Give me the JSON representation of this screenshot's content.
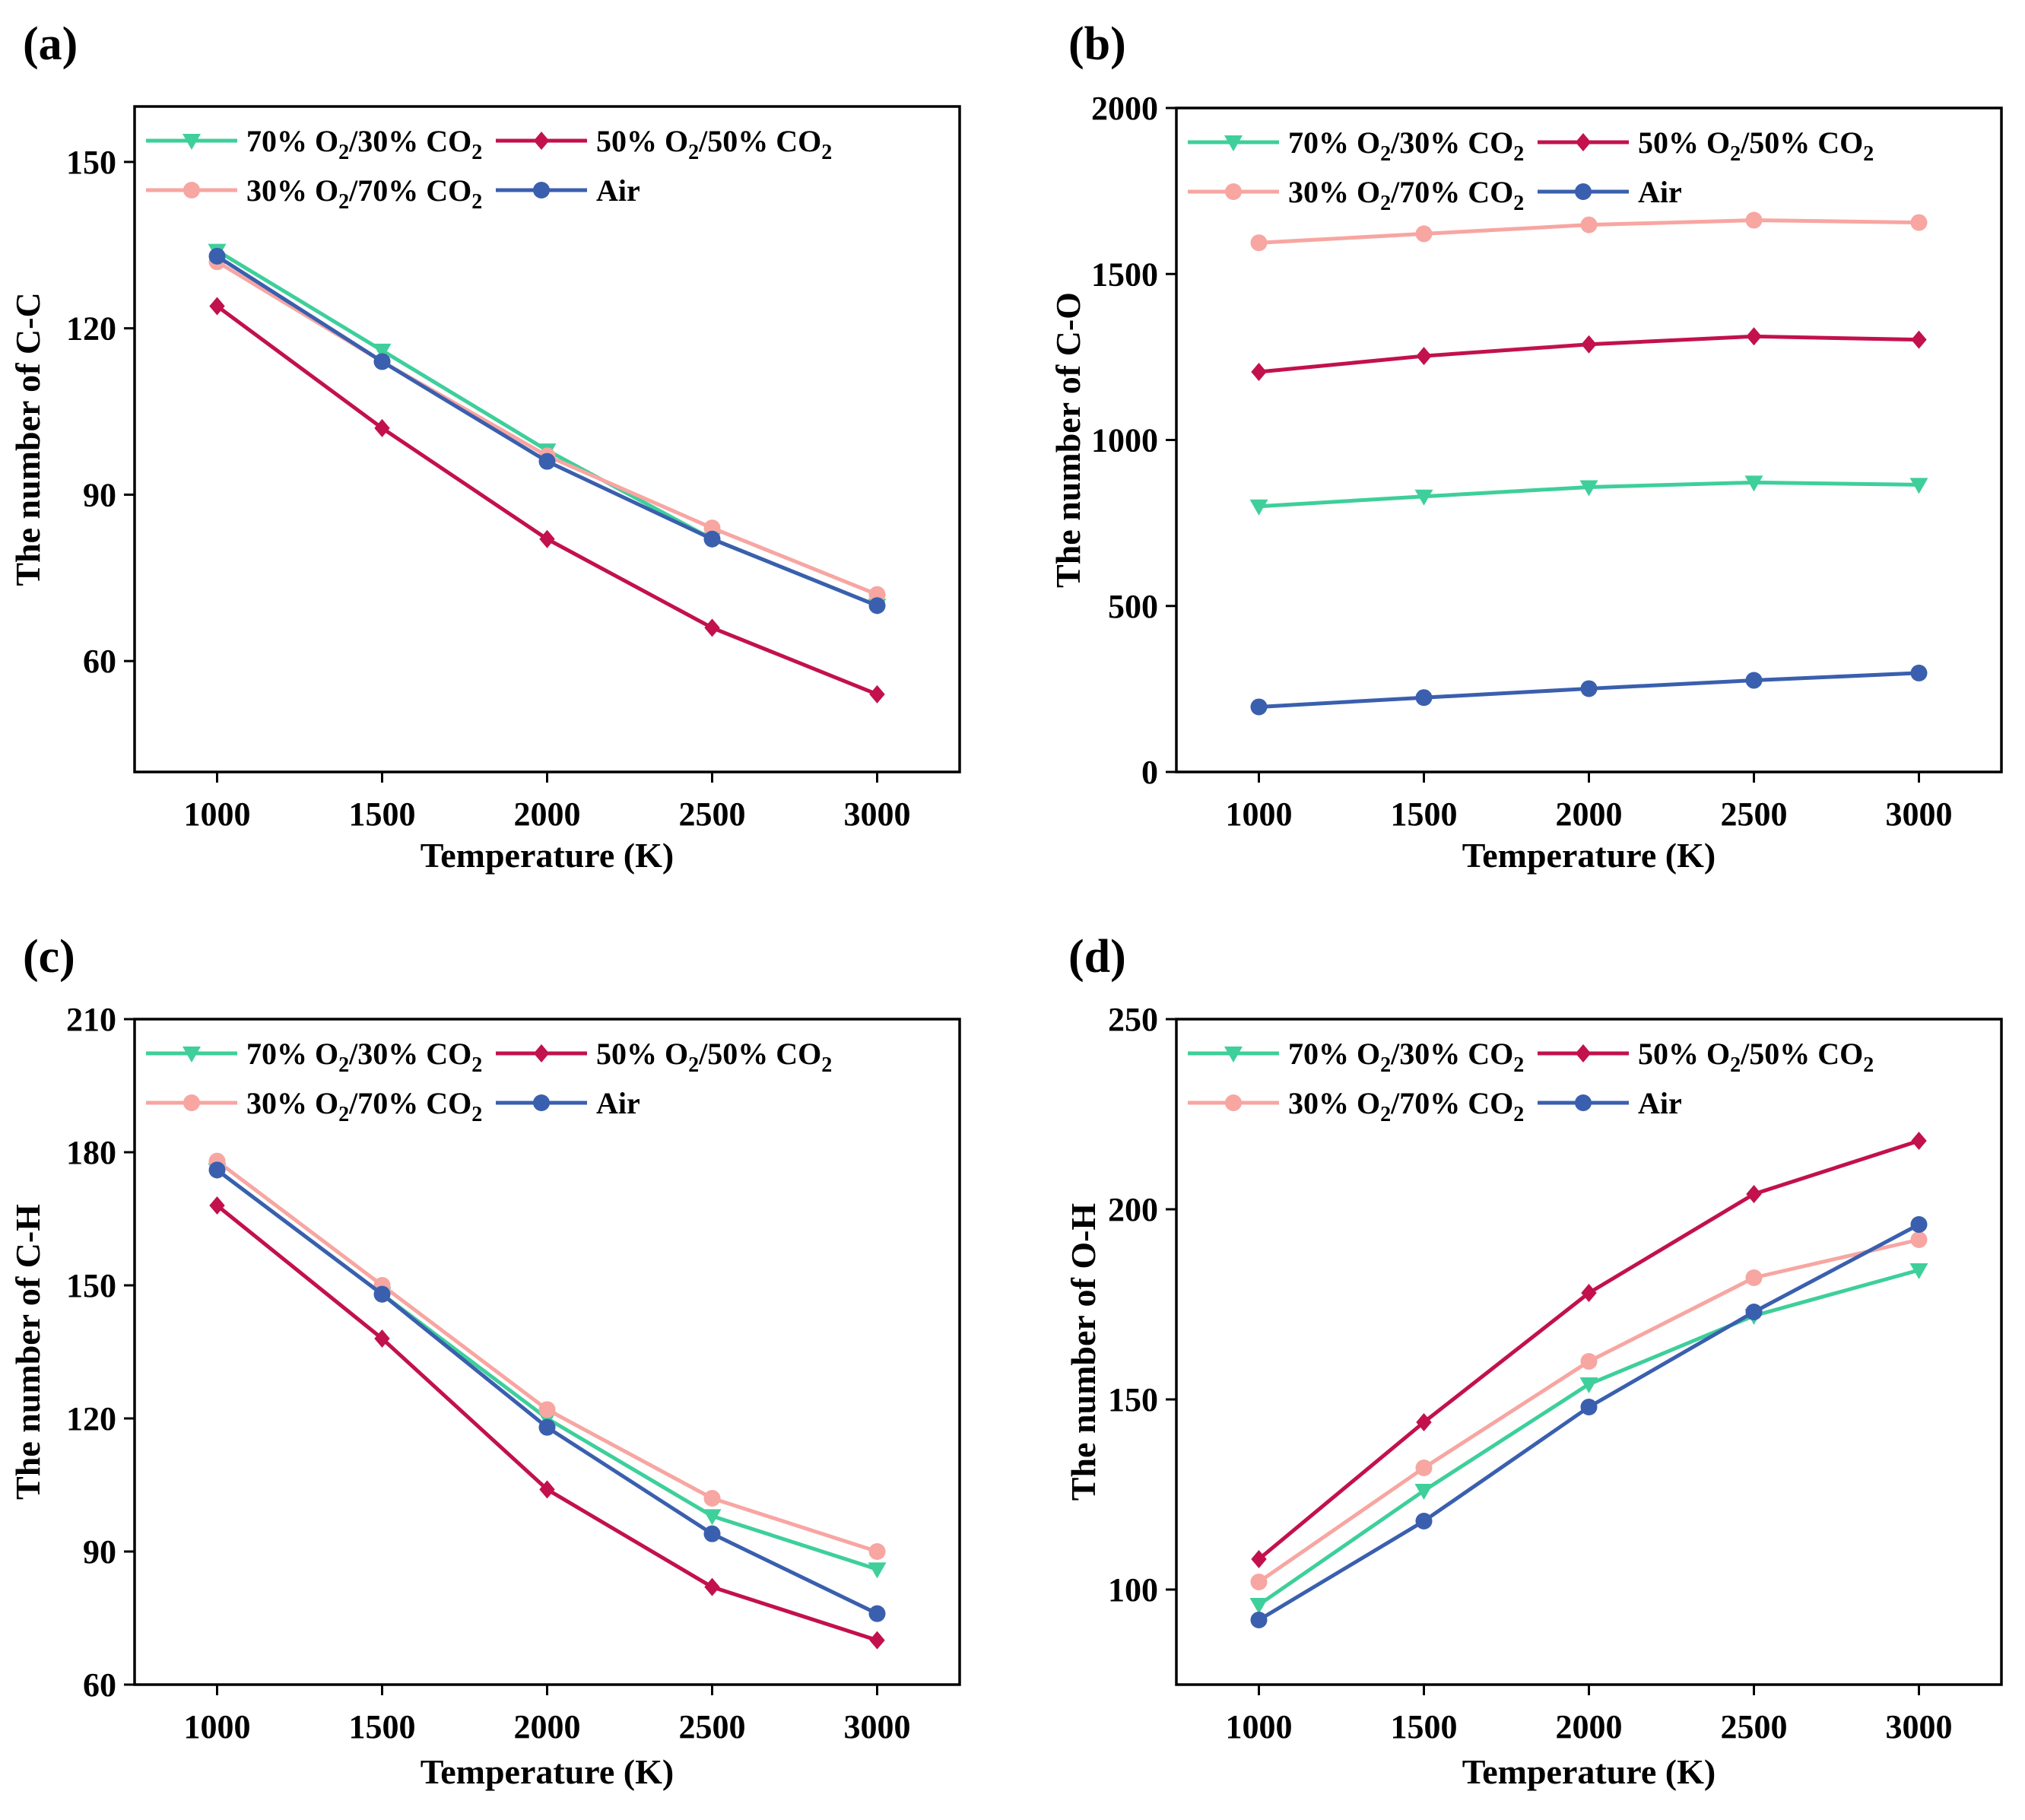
{
  "x_categories": [
    1000,
    1500,
    2000,
    2500,
    3000
  ],
  "series_style": [
    {
      "key": "s70",
      "color": "#3ecf9b",
      "marker": "triangle-down",
      "label_html": "70% O<sub>2</sub>/30% CO<sub>2</sub>"
    },
    {
      "key": "s50",
      "color": "#c2114d",
      "marker": "diamond",
      "label_html": "50% O<sub>2</sub>/50% CO<sub>2</sub>"
    },
    {
      "key": "s30",
      "color": "#f7a6a2",
      "marker": "circle",
      "label_html": "30% O<sub>2</sub>/70% CO<sub>2</sub>"
    },
    {
      "key": "air",
      "color": "#3a5fae",
      "marker": "circle",
      "label_html": "Air"
    }
  ],
  "chart_data": [
    {
      "type": "line",
      "panel_label": "(a)",
      "xlabel": "Temperature (K)",
      "ylabel": "The number of C-C",
      "x": [
        1000,
        1500,
        2000,
        2500,
        3000
      ],
      "xlim": [
        750,
        3250
      ],
      "ylim": [
        40,
        160
      ],
      "yticks": [
        60,
        90,
        120,
        150
      ],
      "series": [
        {
          "name": "70% O2/30% CO2",
          "values": [
            134,
            116,
            98,
            82,
            70
          ]
        },
        {
          "name": "50% O2/50% CO2",
          "values": [
            124,
            102,
            82,
            66,
            54
          ]
        },
        {
          "name": "30% O2/70% CO2",
          "values": [
            132,
            114,
            97,
            84,
            72
          ]
        },
        {
          "name": "Air",
          "values": [
            133,
            114,
            96,
            82,
            70
          ]
        }
      ]
    },
    {
      "type": "line",
      "panel_label": "(b)",
      "xlabel": "Temperature (K)",
      "ylabel": "The number of C-O",
      "x": [
        1000,
        1500,
        2000,
        2500,
        3000
      ],
      "xlim": [
        750,
        3250
      ],
      "ylim": [
        0,
        2000
      ],
      "yticks": [
        0,
        500,
        1000,
        1500,
        2000
      ],
      "series": [
        {
          "name": "70% O2/30% CO2",
          "values": [
            800,
            830,
            858,
            872,
            865
          ]
        },
        {
          "name": "50% O2/50% CO2",
          "values": [
            1205,
            1253,
            1288,
            1312,
            1302
          ]
        },
        {
          "name": "30% O2/70% CO2",
          "values": [
            1594,
            1621,
            1648,
            1662,
            1655
          ]
        },
        {
          "name": "Air",
          "values": [
            196,
            224,
            251,
            276,
            298
          ]
        }
      ]
    },
    {
      "type": "line",
      "panel_label": "(c)",
      "xlabel": "Temperature (K)",
      "ylabel": "The number of C-H",
      "x": [
        1000,
        1500,
        2000,
        2500,
        3000
      ],
      "xlim": [
        750,
        3250
      ],
      "ylim": [
        60,
        210
      ],
      "yticks": [
        60,
        90,
        120,
        150,
        180,
        210
      ],
      "series": [
        {
          "name": "70% O2/30% CO2",
          "values": [
            176,
            148,
            120,
            98,
            86
          ]
        },
        {
          "name": "50% O2/50% CO2",
          "values": [
            168,
            138,
            104,
            82,
            70
          ]
        },
        {
          "name": "30% O2/70% CO2",
          "values": [
            178,
            150,
            122,
            102,
            90
          ]
        },
        {
          "name": "Air",
          "values": [
            176,
            148,
            118,
            94,
            76
          ]
        }
      ]
    },
    {
      "type": "line",
      "panel_label": "(d)",
      "xlabel": "Temperature (K)",
      "ylabel": "The number of O-H",
      "x": [
        1000,
        1500,
        2000,
        2500,
        3000
      ],
      "xlim": [
        750,
        3250
      ],
      "ylim": [
        75,
        250
      ],
      "yticks": [
        100,
        150,
        200,
        250
      ],
      "series": [
        {
          "name": "70% O2/30% CO2",
          "values": [
            96,
            126,
            154,
            172,
            184
          ]
        },
        {
          "name": "50% O2/50% CO2",
          "values": [
            108,
            144,
            178,
            204,
            218
          ]
        },
        {
          "name": "30% O2/70% CO2",
          "values": [
            102,
            132,
            160,
            182,
            192
          ]
        },
        {
          "name": "Air",
          "values": [
            92,
            118,
            148,
            173,
            196
          ]
        }
      ]
    }
  ]
}
